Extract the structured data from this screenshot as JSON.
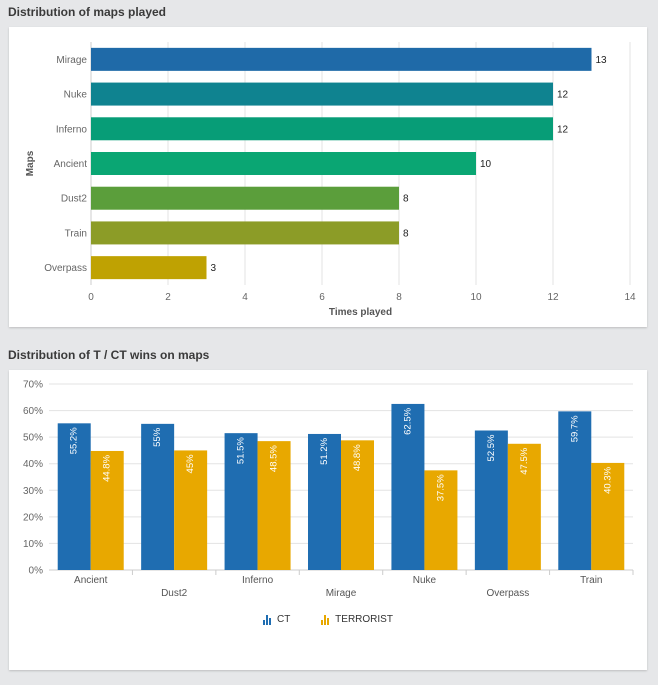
{
  "panels": {
    "maps_played_title": "Distribution of maps played",
    "wins_title": "Distribution of T / CT wins on maps"
  },
  "colors": {
    "ct": "#1f6db1",
    "terrorist": "#e8a800",
    "grid": "#e3e3e3"
  },
  "chart_data": [
    {
      "type": "bar",
      "orientation": "horizontal",
      "title": "Distribution of maps played",
      "xlabel": "Times played",
      "ylabel": "Maps",
      "categories": [
        "Mirage",
        "Nuke",
        "Inferno",
        "Ancient",
        "Dust2",
        "Train",
        "Overpass"
      ],
      "values": [
        13,
        12,
        12,
        10,
        8,
        8,
        3
      ],
      "data_labels": [
        "13",
        "12",
        "12",
        "10",
        "8",
        "8",
        "3"
      ],
      "bar_colors": [
        "#1f6aa8",
        "#0f8390",
        "#079d77",
        "#0aa673",
        "#5b9e3b",
        "#8c9c27",
        "#bfa202"
      ],
      "xlim": [
        0,
        14
      ],
      "x_ticks": [
        "0",
        "2",
        "4",
        "6",
        "8",
        "10",
        "12",
        "14"
      ],
      "grid": true
    },
    {
      "type": "bar",
      "title": "Distribution of T / CT wins on maps",
      "categories": [
        "Ancient",
        "Dust2",
        "Inferno",
        "Mirage",
        "Nuke",
        "Overpass",
        "Train"
      ],
      "series": [
        {
          "name": "CT",
          "color": "#1f6db1",
          "values": [
            55.2,
            55,
            51.5,
            51.2,
            62.5,
            52.5,
            59.7
          ],
          "labels": [
            "55.2%",
            "55%",
            "51.5%",
            "51.2%",
            "62.5%",
            "52.5%",
            "59.7%"
          ]
        },
        {
          "name": "TERRORIST",
          "color": "#e8a800",
          "values": [
            44.8,
            45,
            48.5,
            48.8,
            37.5,
            47.5,
            40.3
          ],
          "labels": [
            "44.8%",
            "45%",
            "48.5%",
            "48.8%",
            "37.5%",
            "47.5%",
            "40.3%"
          ]
        }
      ],
      "ylim": [
        0,
        70
      ],
      "y_ticks": [
        "0%",
        "10%",
        "20%",
        "30%",
        "40%",
        "50%",
        "60%",
        "70%"
      ],
      "grid": true,
      "legend": "bottom-center"
    }
  ]
}
